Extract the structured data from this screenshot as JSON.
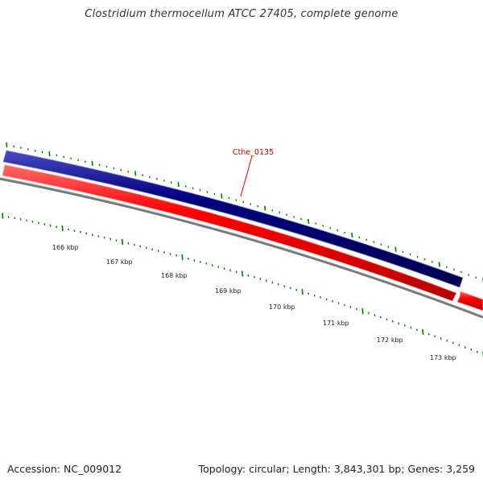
{
  "title": "Clostridium thermocellum ATCC 27405, complete genome",
  "gene_label": "Cthe_0135",
  "ruler": {
    "labels": [
      "166 kbp",
      "167 kbp",
      "168 kbp",
      "169 kbp",
      "170 kbp",
      "171 kbp",
      "172 kbp",
      "173 kbp"
    ]
  },
  "colors": {
    "forward_strand": "#000080",
    "reverse_strand": "#ff0000",
    "backbone": "#808080",
    "gc_ticks": "#007a00",
    "gene_label": "#cc0000"
  },
  "footer": {
    "accession": "Accession: NC_009012",
    "summary": "Topology: circular; Length: 3,843,301 bp; Genes: 3,259"
  }
}
